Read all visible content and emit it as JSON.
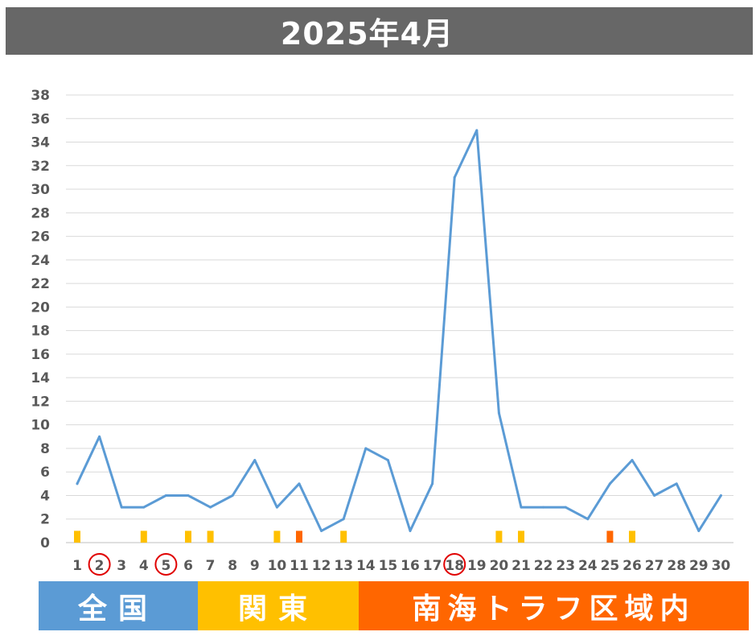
{
  "chart_data": {
    "type": "line",
    "title": "2025年4月",
    "x": [
      1,
      2,
      3,
      4,
      5,
      6,
      7,
      8,
      9,
      10,
      11,
      12,
      13,
      14,
      15,
      16,
      17,
      18,
      19,
      20,
      21,
      22,
      23,
      24,
      25,
      26,
      27,
      28,
      29,
      30
    ],
    "x_tick_labels": [
      "1",
      "2",
      "3",
      "4",
      "5",
      "6",
      "7",
      "8",
      "9",
      "10",
      "11",
      "12",
      "13",
      "14",
      "15",
      "16",
      "17",
      "18",
      "19",
      "20",
      "21",
      "22",
      "23",
      "24",
      "25",
      "26",
      "27",
      "28",
      "29",
      "30"
    ],
    "series": [
      {
        "values": [
          5,
          9,
          3,
          3,
          4,
          4,
          3,
          4,
          7,
          3,
          5,
          1,
          2,
          8,
          7,
          1,
          5,
          31,
          35,
          11,
          3,
          3,
          3,
          2,
          5,
          7,
          4,
          5,
          1,
          4
        ],
        "color": "#5b9bd5"
      }
    ],
    "ylim": [
      0,
      38
    ],
    "y_ticks": [
      "0",
      "2",
      "4",
      "6",
      "8",
      "10",
      "12",
      "14",
      "16",
      "18",
      "20",
      "22",
      "24",
      "26",
      "28",
      "30",
      "32",
      "34",
      "36",
      "38"
    ],
    "grid": "horizontal",
    "circled_days": [
      2,
      5,
      18
    ],
    "circle_color": "#e00000",
    "day_markers": [
      {
        "day": 1,
        "region": "kanto"
      },
      {
        "day": 4,
        "region": "kanto"
      },
      {
        "day": 6,
        "region": "kanto"
      },
      {
        "day": 7,
        "region": "kanto"
      },
      {
        "day": 10,
        "region": "kanto"
      },
      {
        "day": 11,
        "region": "nankai"
      },
      {
        "day": 13,
        "region": "kanto"
      },
      {
        "day": 20,
        "region": "kanto"
      },
      {
        "day": 21,
        "region": "kanto"
      },
      {
        "day": 25,
        "region": "nankai"
      },
      {
        "day": 26,
        "region": "kanto"
      }
    ],
    "legend": {
      "position": "bottom",
      "items": [
        {
          "key": "national",
          "label": "全国",
          "color": "#5b9bd5"
        },
        {
          "key": "kanto",
          "label": "関東",
          "color": "#ffc000"
        },
        {
          "key": "nankai",
          "label": "南海トラフ区域内",
          "color": "#ff6600"
        }
      ]
    }
  }
}
